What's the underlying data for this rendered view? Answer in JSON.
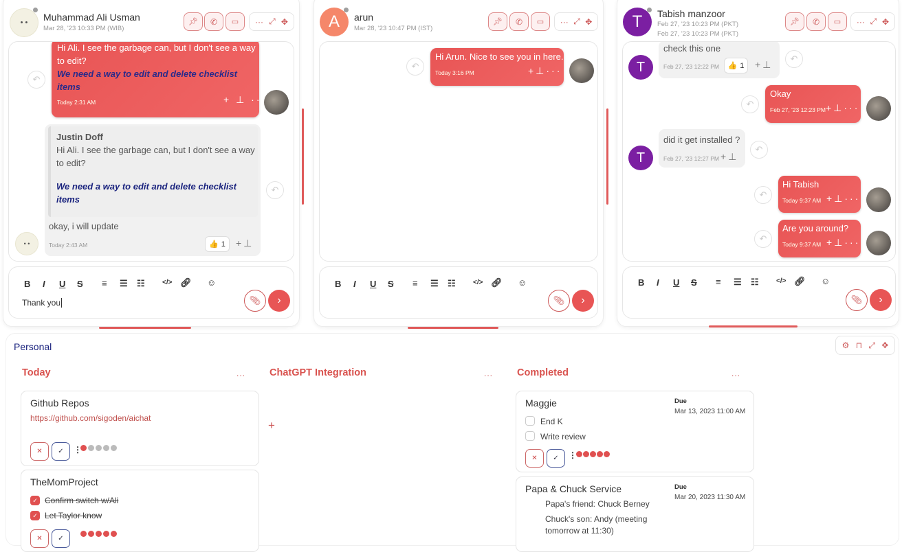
{
  "colors": {
    "accent": "#e85555",
    "navy": "#1a237e",
    "purple": "#7b1fa2",
    "orange": "#f5876a"
  },
  "chats": [
    {
      "name": "Muhammad Ali Usman",
      "subtitle": "Mar 28, '23 10:33 PM (WIB)",
      "messages": [
        {
          "type": "outgoing",
          "lines": [
            "Hi Ali. I see the garbage can, but I don't see a way",
            "to edit?"
          ],
          "italic": [
            "We need a way to edit and delete checklist",
            "items"
          ],
          "time": "Today 2:31 AM"
        },
        {
          "type": "incoming",
          "quote_author": "Justin Doff",
          "quote_lines": [
            "Hi Ali. I see the garbage can, but I don't see a way",
            "to edit?"
          ],
          "quote_italic": [
            "We need a way to edit and delete checklist",
            "items"
          ],
          "text": "okay, i will update",
          "time": "Today 2:43 AM",
          "reaction": "👍",
          "reaction_count": "1"
        }
      ],
      "composer": {
        "value": "Thank you"
      }
    },
    {
      "name": "arun",
      "initial": "A",
      "subtitle": "Mar 28, '23 10:47 PM (IST)",
      "messages": [
        {
          "type": "outgoing",
          "text": "Hi Arun. Nice to see you in here.",
          "time": "Today 3:16 PM"
        }
      ],
      "composer": {
        "value": ""
      }
    },
    {
      "name": "Tabish manzoor",
      "initial": "T",
      "subtitle": "Feb 27, '23 10:23 PM (PKT)",
      "subtitle2": "Feb 27, '23 10:23 PM (PKT)",
      "messages": [
        {
          "type": "incoming",
          "text": "check this one",
          "time": "Feb 27, '23 12:22 PM",
          "reaction": "👍",
          "reaction_count": "1"
        },
        {
          "type": "outgoing",
          "text": "Okay",
          "time": "Feb 27, '23 12:23 PM"
        },
        {
          "type": "incoming",
          "text": "did it get installed ?",
          "time": "Feb 27, '23 12:27 PM"
        },
        {
          "type": "outgoing",
          "text": "Hi Tabish",
          "time": "Today 9:37 AM"
        },
        {
          "type": "outgoing",
          "text": "Are you around?",
          "time": "Today 9:37 AM"
        }
      ],
      "composer": {
        "value": ""
      }
    }
  ],
  "toolbar": {
    "bold": "B",
    "italic": "I",
    "underline": "U",
    "strike": "S"
  },
  "board": {
    "title": "Personal",
    "columns": [
      {
        "title": "Today",
        "more": "...",
        "cards": [
          {
            "title": "Github Repos",
            "link": "https://github.com/sigoden/aichat",
            "priority": 1,
            "priority_max": 5
          },
          {
            "title": "TheMomProject",
            "checklist": [
              {
                "text": "Confirm switch w/Ali",
                "done": true
              },
              {
                "text": "Let Taylor know",
                "done": true
              }
            ],
            "priority": 5,
            "priority_max": 5
          }
        ]
      },
      {
        "title": "ChatGPT Integration",
        "more": "...",
        "add": "+"
      },
      {
        "title": "Completed",
        "more": "...",
        "cards": [
          {
            "title": "Maggie",
            "due_label": "Due",
            "due": "Mar 13, 2023 11:00 AM",
            "checklist": [
              {
                "text": "End K",
                "done": false
              },
              {
                "text": "Write review",
                "done": false
              }
            ],
            "priority": 5,
            "priority_max": 5
          },
          {
            "title": "Papa & Chuck Service",
            "due_label": "Due",
            "due": "Mar 20, 2023 11:30 AM",
            "notes": [
              "Papa's friend: Chuck Berney",
              "Chuck's son: Andy (meeting",
              "tomorrow at 11:30)"
            ]
          }
        ]
      }
    ]
  }
}
